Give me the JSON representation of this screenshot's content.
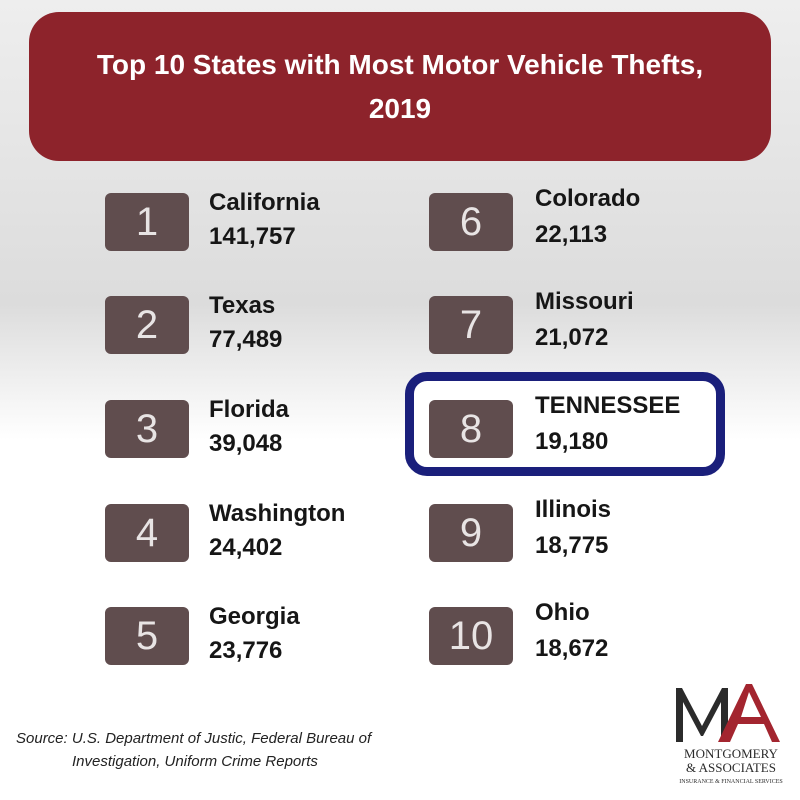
{
  "title": "Top 10 States with Most Motor Vehicle Thefts, 2019",
  "chart_data": {
    "type": "table",
    "title": "Top 10 States with Most Motor Vehicle Thefts, 2019",
    "columns": [
      "rank",
      "state",
      "thefts"
    ],
    "rows": [
      {
        "rank": "1",
        "state": "California",
        "thefts": "141,757",
        "value": 141757
      },
      {
        "rank": "2",
        "state": "Texas",
        "thefts": "77,489",
        "value": 77489
      },
      {
        "rank": "3",
        "state": "Florida",
        "thefts": "39,048",
        "value": 39048
      },
      {
        "rank": "4",
        "state": "Washington",
        "thefts": "24,402",
        "value": 24402
      },
      {
        "rank": "5",
        "state": "Georgia",
        "thefts": "23,776",
        "value": 23776
      },
      {
        "rank": "6",
        "state": "Colorado",
        "thefts": "22,113",
        "value": 22113
      },
      {
        "rank": "7",
        "state": "Missouri",
        "thefts": "21,072",
        "value": 21072
      },
      {
        "rank": "8",
        "state": "TENNESSEE",
        "thefts": "19,180",
        "value": 19180,
        "highlighted": true
      },
      {
        "rank": "9",
        "state": "Illinois",
        "thefts": "18,775",
        "value": 18775
      },
      {
        "rank": "10",
        "state": "Ohio",
        "thefts": "18,672",
        "value": 18672
      }
    ]
  },
  "source": {
    "line1": "Source:  U.S. Department of Justic, Federal Bureau of",
    "line2": "Investigation, Uniform Crime Reports"
  },
  "logo": {
    "monogram": "MA",
    "line1": "MONTGOMERY",
    "line2": "& ASSOCIATES",
    "line3": "INSURANCE & FINANCIAL SERVICES"
  },
  "colors": {
    "banner": "#8d232b",
    "rank_box": "#604d4e",
    "highlight": "#1a1f7b",
    "logo_red": "#a3252f",
    "logo_dark": "#2b2b2b"
  }
}
